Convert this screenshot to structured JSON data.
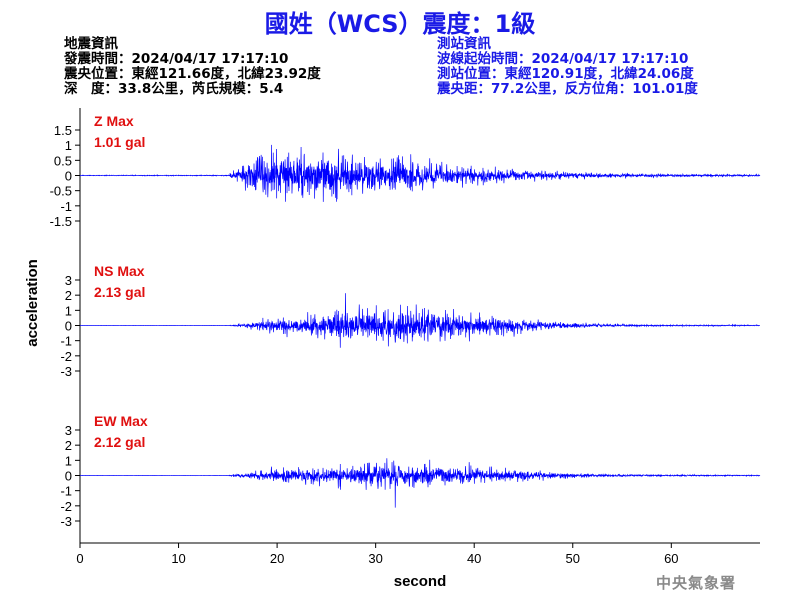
{
  "title": "國姓（WCS）震度：1級",
  "earthquake_info": {
    "heading": "地震資訊",
    "origin_time": "發震時間：2024/04/17 17:17:10",
    "epicenter": "震央位置：東經121.66度，北緯23.92度",
    "depth_magnitude": "深　度：33.8公里，芮氏規模：5.4"
  },
  "station_info": {
    "heading": "測站資訊",
    "wave_start_time": "波線起始時間：2024/04/17 17:17:10",
    "station_location": "測站位置：東經120.91度，北緯24.06度",
    "epicentral_distance": "震央距：77.2公里，反方位角：101.01度"
  },
  "footer": "中央氣象署",
  "colors": {
    "title": "#1a1ae6",
    "trace": "#0000ff",
    "max_label": "#e01010",
    "station_text": "#1a1ae6",
    "footer": "#8a8a8a"
  },
  "chart_data": {
    "type": "line",
    "xlabel": "second",
    "ylabel": "acceleration",
    "xlim": [
      0,
      69
    ],
    "xticks": [
      0,
      10,
      20,
      30,
      40,
      50,
      60
    ],
    "panels": [
      {
        "channel": "Z",
        "max_label": "Z Max",
        "max_value": "1.01 gal",
        "peak": 1.01,
        "ylim": [
          -1.5,
          1.5
        ],
        "yticks": [
          -1.5,
          -1,
          -0.5,
          0,
          0.5,
          1,
          1.5
        ],
        "ytick_labels": [
          "-1.5",
          "-1",
          "-0.5",
          "0",
          "0.5",
          "1",
          "1.5"
        ],
        "envelope": {
          "t": [
            0,
            15,
            15.4,
            17,
            19,
            22,
            25,
            28,
            30,
            32,
            35,
            38,
            41,
            45,
            50,
            55,
            60,
            65,
            69
          ],
          "amp": [
            0.012,
            0.015,
            0.12,
            0.45,
            0.72,
            0.78,
            0.72,
            0.62,
            0.58,
            0.55,
            0.45,
            0.34,
            0.26,
            0.17,
            0.1,
            0.065,
            0.05,
            0.04,
            0.035
          ]
        },
        "seed": 11
      },
      {
        "channel": "NS",
        "max_label": "NS Max",
        "max_value": "2.13 gal",
        "peak": 2.13,
        "ylim": [
          -3,
          3
        ],
        "yticks": [
          -3,
          -2,
          -1,
          0,
          1,
          2,
          3
        ],
        "ytick_labels": [
          "-3",
          "-2",
          "-1",
          "0",
          "1",
          "2",
          "3"
        ],
        "envelope": {
          "t": [
            0,
            15,
            15.4,
            17,
            19,
            22,
            25,
            27,
            30,
            33,
            36,
            39,
            42,
            45,
            48,
            52,
            56,
            60,
            65,
            69
          ],
          "amp": [
            0.006,
            0.008,
            0.04,
            0.15,
            0.45,
            0.62,
            0.8,
            1.05,
            1.1,
            1.25,
            1.05,
            0.9,
            0.7,
            0.45,
            0.28,
            0.12,
            0.07,
            0.05,
            0.04,
            0.035
          ]
        },
        "seed": 23
      },
      {
        "channel": "EW",
        "max_label": "EW Max",
        "max_value": "2.12 gal",
        "peak": 2.12,
        "ylim": [
          -3,
          3
        ],
        "yticks": [
          -3,
          -2,
          -1,
          0,
          1,
          2,
          3
        ],
        "ytick_labels": [
          "-3",
          "-2",
          "-1",
          "0",
          "1",
          "2",
          "3"
        ],
        "envelope": {
          "t": [
            0,
            15,
            15.4,
            17,
            19,
            22,
            25,
            28,
            31,
            34,
            37,
            40,
            43,
            47,
            52,
            56,
            60,
            65,
            69
          ],
          "amp": [
            0.006,
            0.008,
            0.06,
            0.2,
            0.38,
            0.52,
            0.62,
            0.75,
            0.95,
            0.85,
            0.72,
            0.6,
            0.42,
            0.25,
            0.12,
            0.07,
            0.05,
            0.04,
            0.035
          ]
        },
        "seed": 37
      }
    ]
  }
}
